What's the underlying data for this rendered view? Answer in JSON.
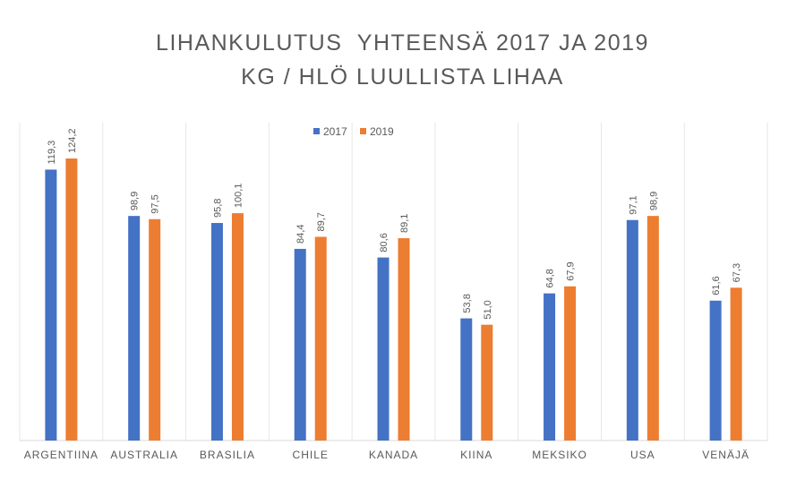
{
  "chart_data": {
    "type": "bar",
    "title": "LIHANKULUTUS  YHTEENSÄ 2017 JA 2019",
    "subtitle": "KG / HLÖ LUULLISTA LIHAA",
    "categories": [
      "ARGENTIINA",
      "AUSTRALIA",
      "BRASILIA",
      "CHILE",
      "KANADA",
      "KIINA",
      "MEKSIKO",
      "USA",
      "VENÄJÄ"
    ],
    "series": [
      {
        "name": "2017",
        "color": "#4472C4",
        "values": [
          119.3,
          98.9,
          95.8,
          84.4,
          80.6,
          53.8,
          64.8,
          97.1,
          61.6
        ],
        "labels": [
          "119,3",
          "98,9",
          "95,8",
          "84,4",
          "80,6",
          "53,8",
          "64,8",
          "97,1",
          "61,6"
        ]
      },
      {
        "name": "2019",
        "color": "#ED7D31",
        "values": [
          124.2,
          97.5,
          100.1,
          89.7,
          89.1,
          51.0,
          67.9,
          98.9,
          67.3
        ],
        "labels": [
          "124,2",
          "97,5",
          "100,1",
          "89,7",
          "89,1",
          "51,0",
          "67,9",
          "98,9",
          "67,3"
        ]
      }
    ],
    "xlabel": "",
    "ylabel": "",
    "ylim": [
      0,
      140
    ],
    "legend": "top-center",
    "grid": "vertical-separators"
  }
}
